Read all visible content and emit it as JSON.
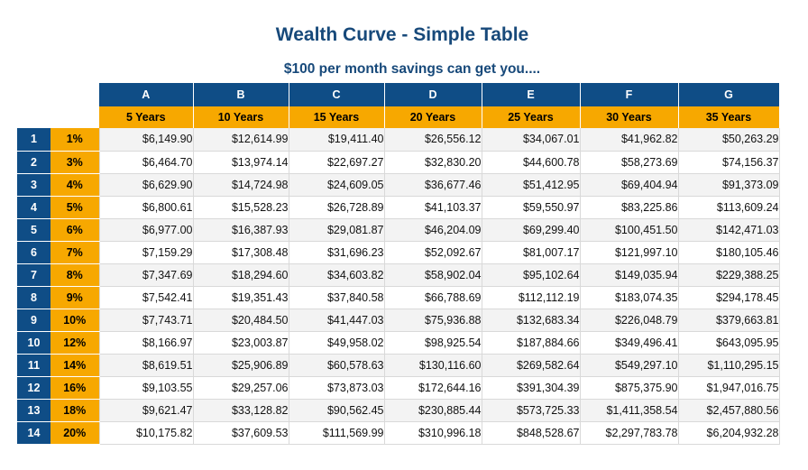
{
  "title": "Wealth Curve - Simple Table",
  "subtitle": "$100 per month savings can get you....",
  "columns": [
    {
      "letter": "A",
      "years": "5 Years"
    },
    {
      "letter": "B",
      "years": "10 Years"
    },
    {
      "letter": "C",
      "years": "15 Years"
    },
    {
      "letter": "D",
      "years": "20 Years"
    },
    {
      "letter": "E",
      "years": "25 Years"
    },
    {
      "letter": "F",
      "years": "30 Years"
    },
    {
      "letter": "G",
      "years": "35 Years"
    }
  ],
  "rows": [
    {
      "num": "1",
      "rate": "1%",
      "values": [
        "$6,149.90",
        "$12,614.99",
        "$19,411.40",
        "$26,556.12",
        "$34,067.01",
        "$41,962.82",
        "$50,263.29"
      ]
    },
    {
      "num": "2",
      "rate": "3%",
      "values": [
        "$6,464.70",
        "$13,974.14",
        "$22,697.27",
        "$32,830.20",
        "$44,600.78",
        "$58,273.69",
        "$74,156.37"
      ]
    },
    {
      "num": "3",
      "rate": "4%",
      "values": [
        "$6,629.90",
        "$14,724.98",
        "$24,609.05",
        "$36,677.46",
        "$51,412.95",
        "$69,404.94",
        "$91,373.09"
      ]
    },
    {
      "num": "4",
      "rate": "5%",
      "values": [
        "$6,800.61",
        "$15,528.23",
        "$26,728.89",
        "$41,103.37",
        "$59,550.97",
        "$83,225.86",
        "$113,609.24"
      ]
    },
    {
      "num": "5",
      "rate": "6%",
      "values": [
        "$6,977.00",
        "$16,387.93",
        "$29,081.87",
        "$46,204.09",
        "$69,299.40",
        "$100,451.50",
        "$142,471.03"
      ]
    },
    {
      "num": "6",
      "rate": "7%",
      "values": [
        "$7,159.29",
        "$17,308.48",
        "$31,696.23",
        "$52,092.67",
        "$81,007.17",
        "$121,997.10",
        "$180,105.46"
      ]
    },
    {
      "num": "7",
      "rate": "8%",
      "values": [
        "$7,347.69",
        "$18,294.60",
        "$34,603.82",
        "$58,902.04",
        "$95,102.64",
        "$149,035.94",
        "$229,388.25"
      ]
    },
    {
      "num": "8",
      "rate": "9%",
      "values": [
        "$7,542.41",
        "$19,351.43",
        "$37,840.58",
        "$66,788.69",
        "$112,112.19",
        "$183,074.35",
        "$294,178.45"
      ]
    },
    {
      "num": "9",
      "rate": "10%",
      "values": [
        "$7,743.71",
        "$20,484.50",
        "$41,447.03",
        "$75,936.88",
        "$132,683.34",
        "$226,048.79",
        "$379,663.81"
      ]
    },
    {
      "num": "10",
      "rate": "12%",
      "values": [
        "$8,166.97",
        "$23,003.87",
        "$49,958.02",
        "$98,925.54",
        "$187,884.66",
        "$349,496.41",
        "$643,095.95"
      ]
    },
    {
      "num": "11",
      "rate": "14%",
      "values": [
        "$8,619.51",
        "$25,906.89",
        "$60,578.63",
        "$130,116.60",
        "$269,582.64",
        "$549,297.10",
        "$1,110,295.15"
      ]
    },
    {
      "num": "12",
      "rate": "16%",
      "values": [
        "$9,103.55",
        "$29,257.06",
        "$73,873.03",
        "$172,644.16",
        "$391,304.39",
        "$875,375.90",
        "$1,947,016.75"
      ]
    },
    {
      "num": "13",
      "rate": "18%",
      "values": [
        "$9,621.47",
        "$33,128.82",
        "$90,562.45",
        "$230,885.44",
        "$573,725.33",
        "$1,411,358.54",
        "$2,457,880.56"
      ]
    },
    {
      "num": "14",
      "rate": "20%",
      "values": [
        "$10,175.82",
        "$37,609.53",
        "$111,569.99",
        "$310,996.18",
        "$848,528.67",
        "$2,297,783.78",
        "$6,204,932.28"
      ]
    }
  ],
  "colors": {
    "header_blue": "#0f4d86",
    "header_orange": "#f7a800",
    "title_blue": "#17497a"
  }
}
